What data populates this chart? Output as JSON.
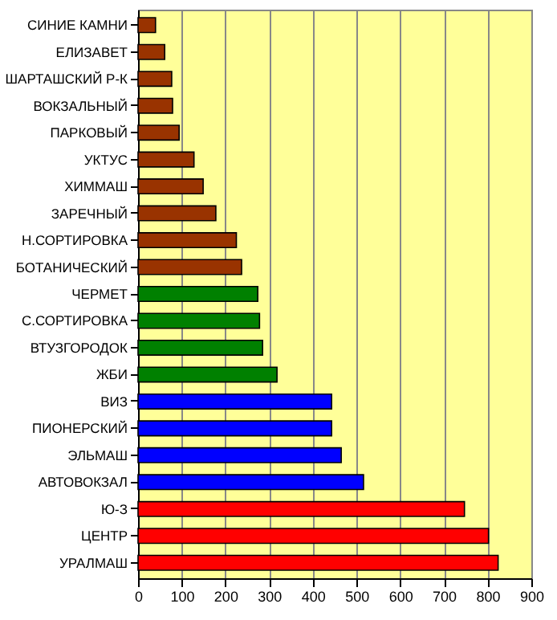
{
  "chart_data": {
    "type": "bar",
    "orientation": "horizontal",
    "categories": [
      "СИНИЕ КАМНИ",
      "ЕЛИЗАВЕТ",
      "ШАРТАШСКИЙ Р-К",
      "ВОКЗАЛЬНЫЙ",
      "ПАРКОВЫЙ",
      "УКТУС",
      "ХИММАШ",
      "ЗАРЕЧНЫЙ",
      "Н.СОРТИРОВКА",
      "БОТАНИЧЕСКИЙ",
      "ЧЕРМЕТ",
      "С.СОРТИРОВКА",
      "ВТУЗГОРОДОК",
      "ЖБИ",
      "ВИЗ",
      "ПИОНЕРСКИЙ",
      "ЭЛЬМАШ",
      "АВТОВОКЗАЛ",
      "Ю-З",
      "ЦЕНТР",
      "УРАЛМАШ"
    ],
    "values": [
      40,
      61,
      77,
      79,
      94,
      128,
      149,
      178,
      225,
      237,
      274,
      278,
      285,
      318,
      443,
      443,
      465,
      516,
      747,
      802,
      824
    ],
    "colors": [
      "#993300",
      "#993300",
      "#993300",
      "#993300",
      "#993300",
      "#993300",
      "#993300",
      "#993300",
      "#993300",
      "#993300",
      "#008000",
      "#008000",
      "#008000",
      "#008000",
      "#0000ff",
      "#0000ff",
      "#0000ff",
      "#0000ff",
      "#ff0000",
      "#ff0000",
      "#ff0000"
    ],
    "xlim": [
      0,
      900
    ],
    "xticks": [
      0,
      100,
      200,
      300,
      400,
      500,
      600,
      700,
      800,
      900
    ],
    "grid": "x"
  }
}
